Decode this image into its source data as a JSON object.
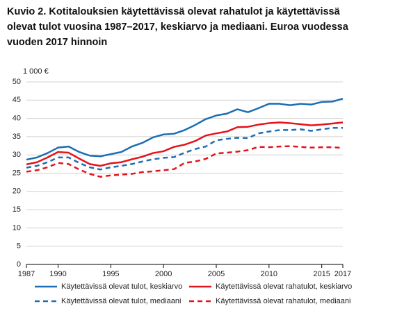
{
  "chart_data": {
    "type": "line",
    "title": "Kuvio 2. Kotitalouksien käytettävissä olevat rahatulot ja käytettävissä olevat tulot vuosina 1987–2017, keskiarvo ja mediaani. Euroa vuodessa vuoden 2017 hinnoin",
    "y_label": "1 000 €",
    "x": [
      1987,
      1988,
      1989,
      1990,
      1991,
      1992,
      1993,
      1994,
      1995,
      1996,
      1997,
      1998,
      1999,
      2000,
      2001,
      2002,
      2003,
      2004,
      2005,
      2006,
      2007,
      2008,
      2009,
      2010,
      2011,
      2012,
      2013,
      2014,
      2015,
      2016,
      2017
    ],
    "xlim": [
      1987,
      2017
    ],
    "xticks": [
      1987,
      1990,
      1995,
      2000,
      2005,
      2010,
      2015,
      2017
    ],
    "ylim": [
      0,
      50
    ],
    "yticks": [
      0,
      5,
      10,
      15,
      20,
      25,
      30,
      35,
      40,
      45,
      50
    ],
    "grid": true,
    "series": [
      {
        "name": "Käytettävissä olevat tulot, keskiarvo",
        "color": "#1c6db3",
        "dashed": false,
        "values": [
          28.7,
          29.3,
          30.5,
          32.0,
          32.3,
          30.8,
          29.8,
          29.6,
          30.2,
          30.8,
          32.3,
          33.3,
          34.8,
          35.6,
          35.8,
          36.8,
          38.2,
          39.8,
          40.8,
          41.3,
          42.5,
          41.7,
          42.8,
          44.0,
          44.0,
          43.6,
          44.0,
          43.8,
          44.5,
          44.6,
          45.4
        ]
      },
      {
        "name": "Käytettävissä olevat rahatulot, keskiarvo",
        "color": "#e3131b",
        "dashed": false,
        "values": [
          27.4,
          28.0,
          29.3,
          30.8,
          30.6,
          29.0,
          27.5,
          27.0,
          27.7,
          28.0,
          28.8,
          29.5,
          30.5,
          31.0,
          32.2,
          32.8,
          33.8,
          35.3,
          35.9,
          36.4,
          37.6,
          37.7,
          38.3,
          38.7,
          38.9,
          38.7,
          38.4,
          38.1,
          38.3,
          38.6,
          38.9
        ]
      },
      {
        "name": "Käytettävissä olevat tulot, mediaani",
        "color": "#1c6db3",
        "dashed": true,
        "values": [
          26.5,
          27.0,
          28.0,
          29.3,
          29.3,
          27.8,
          26.6,
          26.0,
          26.6,
          27.0,
          27.5,
          28.2,
          28.8,
          29.2,
          29.4,
          30.6,
          31.6,
          32.3,
          34.0,
          34.4,
          34.7,
          34.6,
          35.9,
          36.4,
          36.8,
          36.8,
          37.0,
          36.6,
          37.0,
          37.4,
          37.4
        ]
      },
      {
        "name": "Käytettävissä olevat rahatulot, mediaani",
        "color": "#e3131b",
        "dashed": true,
        "values": [
          25.4,
          25.8,
          26.6,
          27.8,
          27.5,
          26.0,
          24.8,
          24.0,
          24.4,
          24.6,
          24.8,
          25.3,
          25.5,
          25.8,
          26.1,
          27.8,
          28.2,
          28.9,
          30.4,
          30.6,
          30.9,
          31.3,
          32.2,
          32.1,
          32.3,
          32.4,
          32.2,
          32.0,
          32.1,
          32.1,
          31.9
        ]
      }
    ]
  }
}
